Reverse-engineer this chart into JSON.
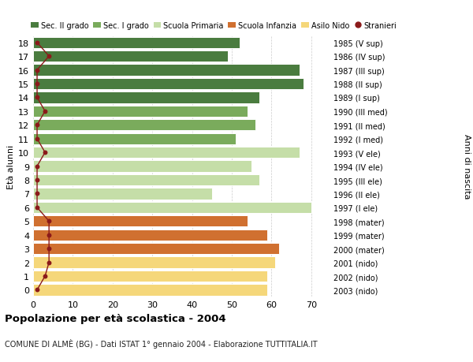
{
  "ages": [
    18,
    17,
    16,
    15,
    14,
    13,
    12,
    11,
    10,
    9,
    8,
    7,
    6,
    5,
    4,
    3,
    2,
    1,
    0
  ],
  "years": [
    "1985 (V sup)",
    "1986 (IV sup)",
    "1987 (III sup)",
    "1988 (II sup)",
    "1989 (I sup)",
    "1990 (III med)",
    "1991 (II med)",
    "1992 (I med)",
    "1993 (V ele)",
    "1994 (IV ele)",
    "1995 (III ele)",
    "1996 (II ele)",
    "1997 (I ele)",
    "1998 (mater)",
    "1999 (mater)",
    "2000 (mater)",
    "2001 (nido)",
    "2002 (nido)",
    "2003 (nido)"
  ],
  "bar_values": [
    52,
    49,
    67,
    68,
    57,
    54,
    56,
    51,
    67,
    55,
    57,
    45,
    70,
    54,
    59,
    62,
    61,
    59,
    59
  ],
  "stranieri": [
    1,
    4,
    1,
    1,
    1,
    3,
    1,
    1,
    3,
    1,
    1,
    1,
    1,
    4,
    4,
    4,
    4,
    3,
    1
  ],
  "bar_colors": [
    "#4a7c3f",
    "#4a7c3f",
    "#4a7c3f",
    "#4a7c3f",
    "#4a7c3f",
    "#7aab5c",
    "#7aab5c",
    "#7aab5c",
    "#c5dea8",
    "#c5dea8",
    "#c5dea8",
    "#c5dea8",
    "#c5dea8",
    "#d07030",
    "#d07030",
    "#d07030",
    "#f5d77a",
    "#f5d77a",
    "#f5d77a"
  ],
  "legend_labels": [
    "Sec. II grado",
    "Sec. I grado",
    "Scuola Primaria",
    "Scuola Infanzia",
    "Asilo Nido",
    "Stranieri"
  ],
  "legend_colors": [
    "#4a7c3f",
    "#7aab5c",
    "#c5dea8",
    "#d07030",
    "#f5d77a",
    "#8b1a1a"
  ],
  "stranieri_color": "#8b1a1a",
  "title": "Popolazione per età scolastica - 2004",
  "subtitle": "COMUNE DI ALMÈ (BG) - Dati ISTAT 1° gennaio 2004 - Elaborazione TUTTITALIA.IT",
  "ylabel_left": "Età alunni",
  "ylabel_right": "Anni di nascita",
  "xlim_max": 75,
  "xticks": [
    0,
    10,
    20,
    30,
    40,
    50,
    60,
    70
  ],
  "bg_color": "#ffffff"
}
